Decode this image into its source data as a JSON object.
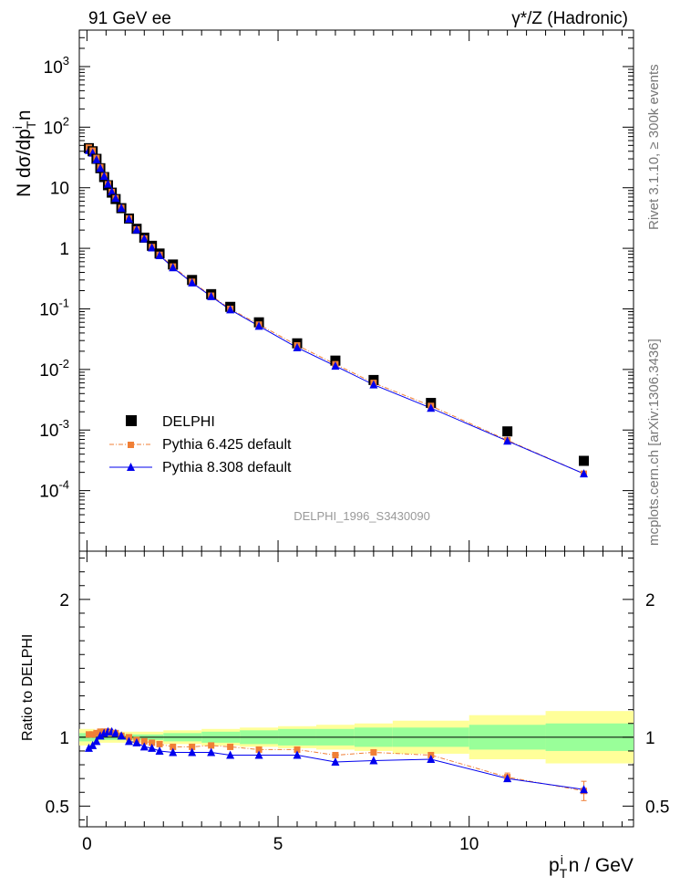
{
  "header": {
    "left": "91 GeV ee",
    "right": "γ*/Z (Hadronic)"
  },
  "side_labels": {
    "top": "Rivet 3.1.10, ≥ 300k events",
    "bottom": "mcplots.cern.ch [arXiv:1306.3436]"
  },
  "watermark": "DELPHI_1996_S3430090",
  "axes": {
    "ylabel_main": "N dσ/dp_T^i n",
    "ylabel_ratio": "Ratio to DELPHI",
    "xlabel": "p_T^i n / GeV",
    "x_ticks": [
      "0",
      "5",
      "10"
    ],
    "y_main_ticks": [
      "10^3",
      "10^2",
      "10",
      "1",
      "10^-1",
      "10^-2",
      "10^-3",
      "10^-4"
    ],
    "y_ratio_ticks": [
      "2",
      "1",
      "0.5"
    ]
  },
  "legend": [
    {
      "label": "DELPHI",
      "color": "#000000",
      "marker": "square"
    },
    {
      "label": "Pythia 6.425 default",
      "color": "#f07f36",
      "marker": "square-small"
    },
    {
      "label": "Pythia 8.308 default",
      "color": "#0000ee",
      "marker": "triangle"
    }
  ],
  "chart_data": {
    "type": "scatter",
    "x_range": [
      -0.2,
      14.3
    ],
    "main": {
      "y_scale": "log",
      "ylim": [
        1e-05,
        4000
      ],
      "x": [
        0.05,
        0.15,
        0.25,
        0.35,
        0.45,
        0.55,
        0.65,
        0.75,
        0.9,
        1.1,
        1.3,
        1.5,
        1.7,
        1.9,
        2.25,
        2.75,
        3.25,
        3.75,
        4.5,
        5.5,
        6.5,
        7.5,
        9.0,
        11.0,
        13.0
      ],
      "series": [
        {
          "name": "DELPHI",
          "values": [
            45,
            40,
            30,
            21,
            15,
            11,
            8.3,
            6.5,
            4.6,
            3.1,
            2.1,
            1.5,
            1.1,
            0.82,
            0.54,
            0.3,
            0.175,
            0.108,
            0.06,
            0.027,
            0.014,
            0.0067,
            0.0028,
            0.00095,
            0.00031
          ]
        },
        {
          "name": "Pythia 6.425 default",
          "values": [
            46,
            41,
            31,
            21.8,
            15.6,
            11.4,
            8.5,
            6.7,
            4.65,
            3.1,
            2.05,
            1.45,
            1.05,
            0.78,
            0.5,
            0.28,
            0.165,
            0.1,
            0.055,
            0.025,
            0.0122,
            0.006,
            0.0025,
            0.00068,
            0.00019
          ]
        },
        {
          "name": "Pythia 8.308 default",
          "values": [
            41.5,
            37.5,
            29,
            21,
            15.5,
            11.5,
            8.6,
            6.7,
            4.6,
            3.05,
            2.03,
            1.44,
            1.02,
            0.76,
            0.48,
            0.27,
            0.16,
            0.097,
            0.052,
            0.023,
            0.0114,
            0.0056,
            0.0023,
            0.00066,
            0.00019
          ]
        }
      ]
    },
    "ratio": {
      "ylim": [
        0.35,
        2.35
      ],
      "reference": 1.0,
      "series": [
        {
          "name": "Pythia 6.425 default",
          "values": [
            1.02,
            1.02,
            1.03,
            1.04,
            1.04,
            1.04,
            1.03,
            1.03,
            1.01,
            1.0,
            0.98,
            0.97,
            0.96,
            0.95,
            0.93,
            0.93,
            0.94,
            0.93,
            0.91,
            0.91,
            0.87,
            0.89,
            0.87,
            0.71,
            0.61
          ]
        },
        {
          "name": "Pythia 8.308 default",
          "values": [
            0.92,
            0.94,
            0.97,
            1.01,
            1.03,
            1.04,
            1.04,
            1.03,
            1.01,
            0.97,
            0.96,
            0.93,
            0.92,
            0.9,
            0.89,
            0.89,
            0.89,
            0.87,
            0.87,
            0.87,
            0.82,
            0.83,
            0.84,
            0.7,
            0.62
          ]
        }
      ],
      "bands": [
        {
          "x0": -0.2,
          "x1": 0.2,
          "stat": 0.03,
          "syst": 0.06
        },
        {
          "x0": 0.2,
          "x1": 1.0,
          "stat": 0.02,
          "syst": 0.04
        },
        {
          "x0": 1.0,
          "x1": 2.0,
          "stat": 0.02,
          "syst": 0.04
        },
        {
          "x0": 2.0,
          "x1": 3.0,
          "stat": 0.03,
          "syst": 0.05
        },
        {
          "x0": 3.0,
          "x1": 4.0,
          "stat": 0.04,
          "syst": 0.06
        },
        {
          "x0": 4.0,
          "x1": 5.0,
          "stat": 0.05,
          "syst": 0.07
        },
        {
          "x0": 5.0,
          "x1": 6.0,
          "stat": 0.06,
          "syst": 0.08
        },
        {
          "x0": 6.0,
          "x1": 7.0,
          "stat": 0.06,
          "syst": 0.09
        },
        {
          "x0": 7.0,
          "x1": 8.0,
          "stat": 0.07,
          "syst": 0.1
        },
        {
          "x0": 8.0,
          "x1": 10.0,
          "stat": 0.07,
          "syst": 0.12
        },
        {
          "x0": 10.0,
          "x1": 12.0,
          "stat": 0.09,
          "syst": 0.16
        },
        {
          "x0": 12.0,
          "x1": 14.3,
          "stat": 0.1,
          "syst": 0.19
        }
      ]
    }
  }
}
